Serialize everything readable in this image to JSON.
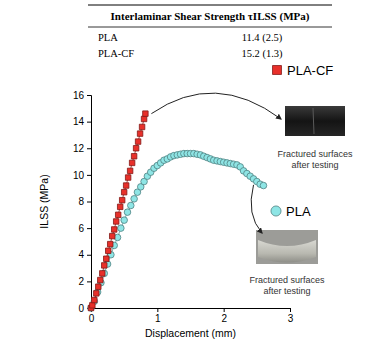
{
  "table": {
    "header": "Interlaminar Shear Strength τILSS (MPa)",
    "rows": [
      [
        "PLA",
        "11.4 (2.5)"
      ],
      [
        "PLA-CF",
        "15.2 (1.3)"
      ]
    ]
  },
  "chart_data": {
    "type": "line",
    "x_label": "Displacement (mm)",
    "y_label": "ILSS (MPa)",
    "xlim": [
      0,
      3
    ],
    "xticks": [
      0,
      1,
      2,
      3
    ],
    "ylim": [
      0,
      16
    ],
    "yticks": [
      0,
      2,
      4,
      6,
      8,
      10,
      12,
      14,
      16
    ],
    "series": [
      {
        "name": "PLA-CF",
        "color": "#e8302a",
        "marker": "square",
        "line_style": "solid",
        "x": [
          0,
          0.02,
          0.05,
          0.08,
          0.11,
          0.14,
          0.17,
          0.2,
          0.23,
          0.26,
          0.29,
          0.32,
          0.35,
          0.38,
          0.41,
          0.44,
          0.47,
          0.5,
          0.53,
          0.56,
          0.59,
          0.62,
          0.65,
          0.68,
          0.71,
          0.74,
          0.77,
          0.8,
          0.82
        ],
        "values": [
          0,
          0.2,
          0.6,
          1.1,
          1.6,
          2.1,
          2.6,
          3.2,
          3.7,
          4.3,
          4.8,
          5.4,
          5.9,
          6.5,
          7.0,
          7.6,
          8.1,
          8.7,
          9.2,
          9.8,
          10.3,
          10.9,
          11.4,
          12.0,
          12.5,
          13.1,
          13.6,
          14.2,
          14.6
        ]
      },
      {
        "name": "PLA",
        "color": "#8ee5e5",
        "marker": "circle",
        "line_style": "solid",
        "x": [
          0,
          0.05,
          0.1,
          0.15,
          0.2,
          0.25,
          0.3,
          0.35,
          0.4,
          0.45,
          0.5,
          0.55,
          0.6,
          0.65,
          0.7,
          0.75,
          0.8,
          0.85,
          0.9,
          0.95,
          1.0,
          1.05,
          1.1,
          1.15,
          1.2,
          1.25,
          1.3,
          1.35,
          1.4,
          1.45,
          1.5,
          1.55,
          1.6,
          1.65,
          1.7,
          1.75,
          1.8,
          1.85,
          1.9,
          1.95,
          2.0,
          2.05,
          2.1,
          2.15,
          2.2,
          2.25,
          2.3,
          2.35,
          2.4,
          2.45,
          2.5,
          2.55,
          2.6
        ],
        "values": [
          0,
          0.5,
          1.2,
          1.9,
          2.6,
          3.3,
          4.0,
          4.7,
          5.3,
          6.0,
          6.6,
          7.2,
          7.7,
          8.2,
          8.7,
          9.1,
          9.5,
          9.9,
          10.2,
          10.5,
          10.7,
          10.9,
          11.1,
          11.2,
          11.35,
          11.45,
          11.5,
          11.55,
          11.6,
          11.6,
          11.6,
          11.6,
          11.55,
          11.5,
          11.4,
          11.3,
          11.2,
          11.1,
          11.05,
          11.0,
          10.95,
          10.9,
          10.85,
          10.8,
          10.75,
          10.6,
          10.3,
          10.1,
          9.9,
          9.7,
          9.5,
          9.3,
          9.2
        ]
      }
    ],
    "annotations": [
      {
        "lines": [
          "Fractured surfaces",
          "after testing"
        ]
      },
      {
        "lines": [
          "Fractured surfaces",
          "after testing"
        ]
      }
    ]
  }
}
